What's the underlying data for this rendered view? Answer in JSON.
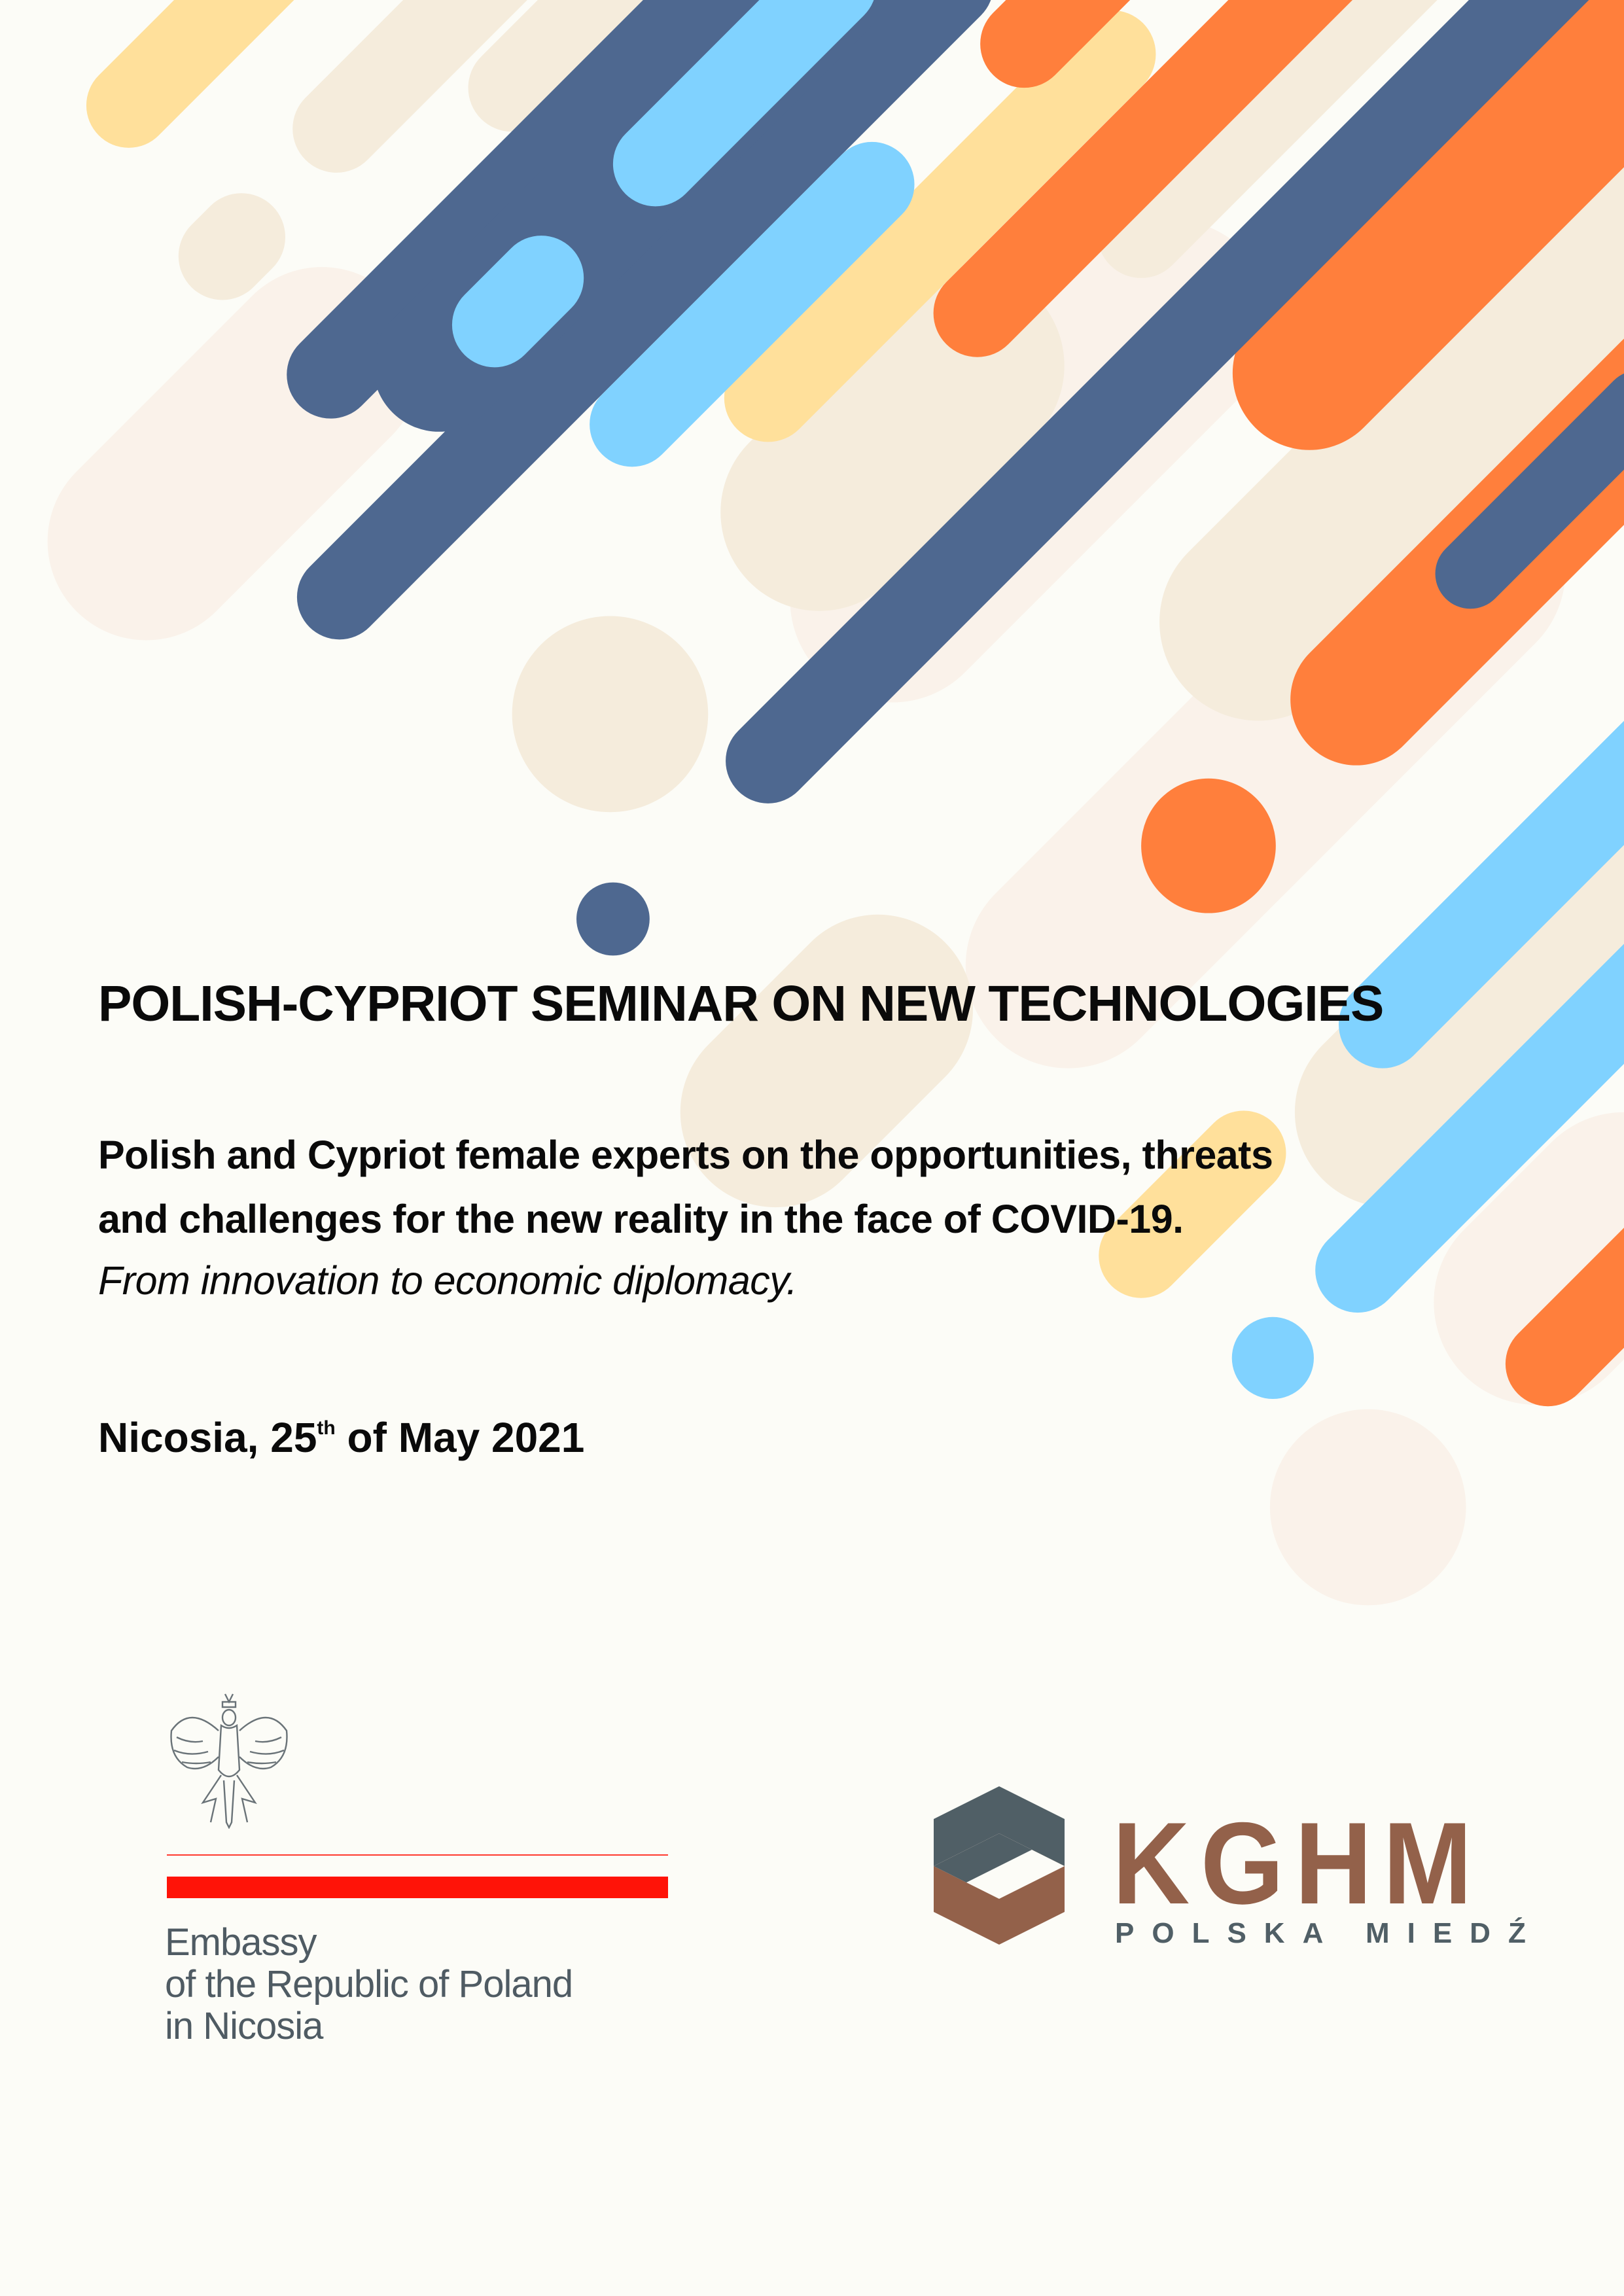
{
  "colors": {
    "navy": "#4E6890",
    "light_blue": "#80D2FF",
    "yellow": "#FFE09B",
    "orange": "#FF7F3C",
    "beige": "#F5ECDC",
    "pale": "#FAF2EA",
    "background": "#FCFCF7",
    "polish_red": "#FF1308",
    "kghm_brown": "#93614A",
    "kghm_slate": "#505F66"
  },
  "poster": {
    "title": "POLISH-CYPRIOT SEMINAR ON NEW TECHNOLOGIES",
    "subtitle_line1": "Polish and Cypriot female experts on the opportunities, threats",
    "subtitle_line2": "and challenges for the new reality in the face of COVID-19.",
    "subtitle_italic": "From innovation to economic diplomacy.",
    "date_prefix": "Nicosia, 25",
    "date_sup": "th",
    "date_suffix": " of May 2021"
  },
  "embassy": {
    "icon": "polish-eagle-emblem",
    "line1": "Embassy",
    "line2": "of the Republic of Poland",
    "line3": "in Nicosia"
  },
  "kghm": {
    "icon": "kghm-hexagon-logo",
    "name": "KGHM",
    "tagline": "POLSKA MIEDŹ"
  }
}
